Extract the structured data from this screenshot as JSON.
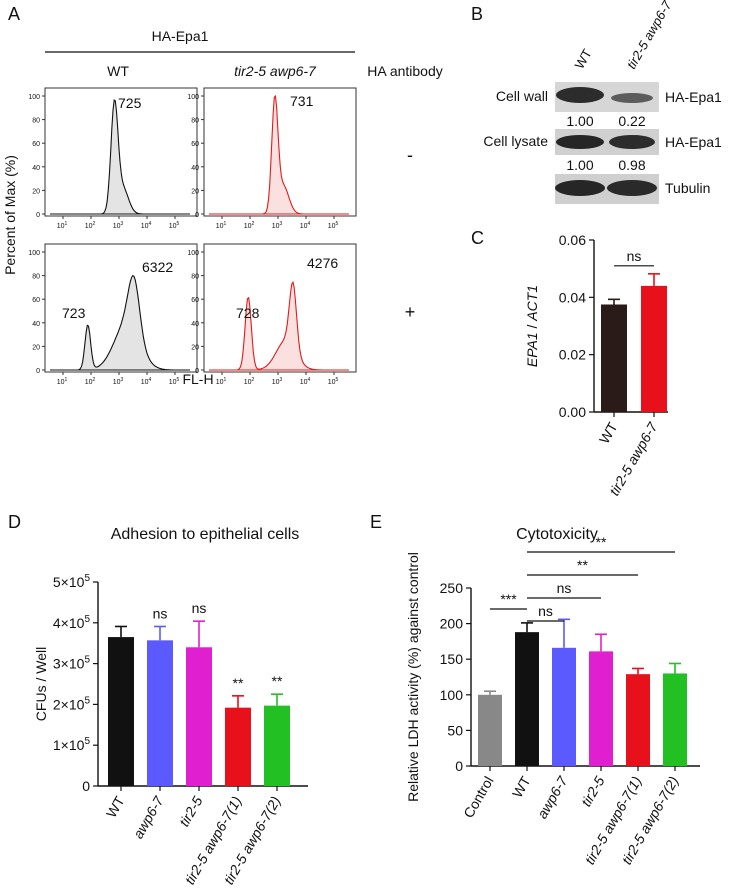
{
  "colors": {
    "black_bar": "#111111",
    "blue": "#5a5aff",
    "magenta": "#e020d0",
    "red": "#e8101a",
    "green": "#22c022",
    "gray": "#888888",
    "wt_bar": "#2a1a18",
    "flow_wt_fill": "#e4e4e4",
    "flow_mut_fill": "#fbe0e0",
    "flow_mut_line": "#e21a1a"
  },
  "panelA": {
    "label": "A",
    "header": "HA-Epa1",
    "col_wt": "WT",
    "col_mut": "tir2-5 awp6-7",
    "col_antibody": "HA antibody",
    "ylabel": "Percent of Max (%)",
    "xlabel": "FL-H",
    "yticks": [
      "0",
      "20",
      "40",
      "60",
      "80",
      "100"
    ],
    "xticks": [
      {
        "base": "10",
        "exp": "1"
      },
      {
        "base": "10",
        "exp": "2"
      },
      {
        "base": "10",
        "exp": "3"
      },
      {
        "base": "10",
        "exp": "4"
      },
      {
        "base": "10",
        "exp": "5"
      }
    ],
    "row_minus": "-",
    "row_plus": "+",
    "labels": {
      "wt_minus": "725",
      "mut_minus": "731",
      "wt_plus_low": "723",
      "wt_plus_high": "6322",
      "mut_plus_low": "728",
      "mut_plus_high": "4276"
    }
  },
  "panelB": {
    "label": "B",
    "col_wt": "WT",
    "col_mut": "tir2-5 awp6-7",
    "rows": [
      {
        "left": "Cell wall",
        "right": "HA-Epa1",
        "wt": "1.00",
        "mut": "0.22"
      },
      {
        "left": "Cell lysate",
        "right": "HA-Epa1",
        "wt": "1.00",
        "mut": "0.98"
      },
      {
        "left": "",
        "right": "Tubulin",
        "wt": "",
        "mut": ""
      }
    ]
  },
  "chart_data": [
    {
      "panel": "C",
      "type": "bar",
      "categories": [
        "WT",
        "tir2-5 awp6-7"
      ],
      "values": [
        0.0375,
        0.044
      ],
      "errors": [
        0.0018,
        0.0042
      ],
      "ylabel_italic": "EPA1",
      "ylabel_rest": " / ",
      "ylabel_italic2": "ACT1",
      "ylim": [
        0,
        0.06
      ],
      "yticks": [
        "0.00",
        "0.02",
        "0.04",
        "0.06"
      ],
      "annotations": [
        "ns"
      ]
    },
    {
      "panel": "D",
      "type": "bar",
      "title": "Adhesion to epithelial cells",
      "categories": [
        "WT",
        "awp6-7",
        "tir2-5",
        "tir2-5 awp6-7(1)",
        "tir2-5 awp6-7(2)"
      ],
      "values": [
        365000,
        357000,
        340000,
        192000,
        197000
      ],
      "errors": [
        26000,
        34000,
        64000,
        29000,
        28000
      ],
      "ylabel": "CFUs / Well",
      "ylim": [
        0,
        500000
      ],
      "yticks": [
        {
          "m": "0",
          "e": ""
        },
        {
          "m": "1×10",
          "e": "5"
        },
        {
          "m": "2×10",
          "e": "5"
        },
        {
          "m": "3×10",
          "e": "5"
        },
        {
          "m": "4×10",
          "e": "5"
        },
        {
          "m": "5×10",
          "e": "5"
        }
      ],
      "sig": [
        "",
        "ns",
        "ns",
        "**",
        "**"
      ]
    },
    {
      "panel": "E",
      "type": "bar",
      "title": "Cytotoxicity",
      "categories": [
        "Control",
        "WT",
        "awp6-7",
        "tir2-5",
        "tir2-5 awp6-7(1)",
        "tir2-5 awp6-7(2)"
      ],
      "values": [
        100,
        188,
        166,
        161,
        129,
        130
      ],
      "errors": [
        5,
        13,
        40,
        24,
        8,
        14
      ],
      "ylabel": "Relative LDH activity (%) against control",
      "ylim": [
        0,
        250
      ],
      "yticks": [
        "0",
        "50",
        "100",
        "150",
        "200",
        "250"
      ],
      "brackets": [
        "***",
        "ns",
        "ns",
        "**",
        "**"
      ]
    }
  ]
}
